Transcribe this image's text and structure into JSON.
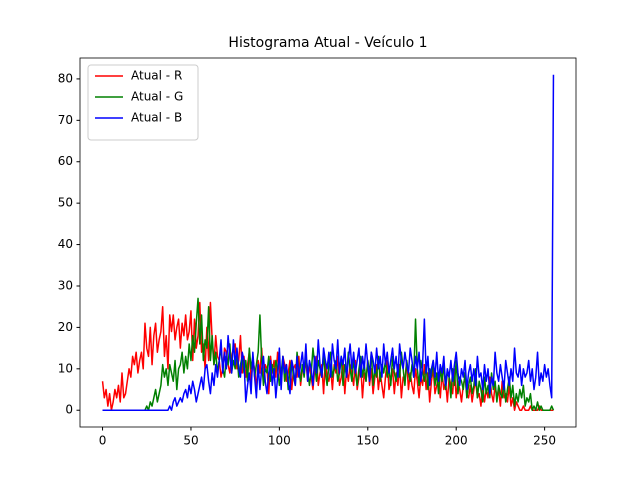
{
  "chart_data": {
    "type": "line",
    "title": "Histograma Atual - Veículo 1",
    "x": [
      0,
      1,
      2,
      3,
      4,
      5,
      6,
      7,
      8,
      9,
      10,
      11,
      12,
      13,
      14,
      15,
      16,
      17,
      18,
      19,
      20,
      21,
      22,
      23,
      24,
      25,
      26,
      27,
      28,
      29,
      30,
      31,
      32,
      33,
      34,
      35,
      36,
      37,
      38,
      39,
      40,
      41,
      42,
      43,
      44,
      45,
      46,
      47,
      48,
      49,
      50,
      51,
      52,
      53,
      54,
      55,
      56,
      57,
      58,
      59,
      60,
      61,
      62,
      63,
      64,
      65,
      66,
      67,
      68,
      69,
      70,
      71,
      72,
      73,
      74,
      75,
      76,
      77,
      78,
      79,
      80,
      81,
      82,
      83,
      84,
      85,
      86,
      87,
      88,
      89,
      90,
      91,
      92,
      93,
      94,
      95,
      96,
      97,
      98,
      99,
      100,
      101,
      102,
      103,
      104,
      105,
      106,
      107,
      108,
      109,
      110,
      111,
      112,
      113,
      114,
      115,
      116,
      117,
      118,
      119,
      120,
      121,
      122,
      123,
      124,
      125,
      126,
      127,
      128,
      129,
      130,
      131,
      132,
      133,
      134,
      135,
      136,
      137,
      138,
      139,
      140,
      141,
      142,
      143,
      144,
      145,
      146,
      147,
      148,
      149,
      150,
      151,
      152,
      153,
      154,
      155,
      156,
      157,
      158,
      159,
      160,
      161,
      162,
      163,
      164,
      165,
      166,
      167,
      168,
      169,
      170,
      171,
      172,
      173,
      174,
      175,
      176,
      177,
      178,
      179,
      180,
      181,
      182,
      183,
      184,
      185,
      186,
      187,
      188,
      189,
      190,
      191,
      192,
      193,
      194,
      195,
      196,
      197,
      198,
      199,
      200,
      201,
      202,
      203,
      204,
      205,
      206,
      207,
      208,
      209,
      210,
      211,
      212,
      213,
      214,
      215,
      216,
      217,
      218,
      219,
      220,
      221,
      222,
      223,
      224,
      225,
      226,
      227,
      228,
      229,
      230,
      231,
      232,
      233,
      234,
      235,
      236,
      237,
      238,
      239,
      240,
      241,
      242,
      243,
      244,
      245,
      246,
      247,
      248,
      249,
      250,
      251,
      252,
      253,
      254,
      255
    ],
    "series": [
      {
        "name": "Atual - R",
        "color": "#ff0000",
        "values": [
          7,
          3,
          5,
          1,
          4,
          0,
          2,
          5,
          3,
          6,
          2,
          9,
          3,
          4,
          7,
          10,
          8,
          13,
          11,
          14,
          9,
          12,
          14,
          10,
          21,
          15,
          13,
          20,
          11,
          18,
          21,
          14,
          17,
          19,
          25,
          13,
          18,
          10,
          23,
          19,
          23,
          17,
          20,
          22,
          15,
          21,
          18,
          23,
          17,
          19,
          24,
          12,
          22,
          15,
          18,
          26,
          14,
          16,
          10,
          20,
          12,
          26,
          17,
          11,
          18,
          13,
          12,
          8,
          10,
          15,
          14,
          11,
          9,
          13,
          15,
          16,
          10,
          12,
          18,
          9,
          13,
          8,
          11,
          14,
          7,
          12,
          10,
          5,
          12,
          9,
          15,
          7,
          11,
          10,
          4,
          13,
          9,
          12,
          8,
          14,
          10,
          6,
          13,
          11,
          7,
          9,
          12,
          5,
          10,
          11,
          8,
          13,
          6,
          10,
          9,
          12,
          7,
          11,
          8,
          5,
          10,
          13,
          6,
          9,
          11,
          4,
          12,
          8,
          7,
          10,
          5,
          11,
          9,
          13,
          6,
          8,
          12,
          4,
          10,
          7,
          11,
          9,
          6,
          12,
          5,
          8,
          11,
          3,
          9,
          7,
          12,
          6,
          10,
          4,
          8,
          11,
          5,
          9,
          6,
          3,
          8,
          12,
          5,
          7,
          10,
          4,
          9,
          6,
          11,
          3,
          8,
          7,
          12,
          5,
          9,
          6,
          4,
          10,
          7,
          3,
          8,
          6,
          11,
          5,
          9,
          2,
          7,
          10,
          4,
          6,
          8,
          3,
          9,
          5,
          7,
          2,
          8,
          6,
          4,
          10,
          3,
          7,
          5,
          2,
          6,
          8,
          4,
          3,
          6,
          2,
          5,
          7,
          3,
          4,
          1,
          6,
          2,
          5,
          3,
          8,
          4,
          2,
          6,
          3,
          5,
          1,
          7,
          3,
          4,
          2,
          6,
          1,
          3,
          0,
          2,
          1,
          0,
          0,
          1,
          0,
          0,
          0,
          1,
          0,
          0,
          0,
          0,
          1,
          0,
          0,
          0,
          0,
          0,
          0,
          0,
          0
        ]
      },
      {
        "name": "Atual - G",
        "color": "#008000",
        "values": [
          0,
          0,
          0,
          0,
          0,
          0,
          0,
          0,
          0,
          0,
          0,
          0,
          0,
          0,
          0,
          0,
          0,
          0,
          0,
          0,
          0,
          0,
          0,
          0,
          0,
          1,
          0,
          2,
          1,
          3,
          5,
          2,
          4,
          6,
          11,
          8,
          10,
          6,
          11,
          9,
          7,
          12,
          5,
          10,
          11,
          14,
          9,
          13,
          10,
          16,
          12,
          18,
          14,
          21,
          27,
          16,
          23,
          12,
          17,
          15,
          25,
          12,
          18,
          11,
          14,
          9,
          12,
          15,
          10,
          8,
          13,
          11,
          16,
          9,
          12,
          10,
          14,
          8,
          11,
          13,
          9,
          12,
          7,
          15,
          10,
          13,
          8,
          11,
          14,
          23,
          12,
          6,
          10,
          9,
          13,
          7,
          11,
          8,
          12,
          10,
          6,
          9,
          13,
          7,
          11,
          5,
          10,
          12,
          8,
          6,
          14,
          9,
          7,
          11,
          8,
          13,
          10,
          6,
          9,
          15,
          11,
          7,
          12,
          10,
          8,
          13,
          9,
          6,
          11,
          14,
          8,
          10,
          12,
          7,
          9,
          13,
          6,
          11,
          8,
          14,
          10,
          7,
          12,
          9,
          6,
          10,
          13,
          8,
          11,
          7,
          12,
          9,
          14,
          6,
          10,
          8,
          13,
          7,
          11,
          9,
          12,
          8,
          10,
          6,
          13,
          9,
          7,
          11,
          8,
          14,
          10,
          6,
          12,
          9,
          7,
          11,
          8,
          22,
          10,
          6,
          12,
          9,
          7,
          11,
          5,
          10,
          8,
          12,
          6,
          9,
          4,
          10,
          7,
          11,
          5,
          9,
          8,
          3,
          10,
          6,
          12,
          4,
          8,
          7,
          5,
          9,
          3,
          6,
          8,
          4,
          6,
          10,
          3,
          7,
          5,
          2,
          8,
          4,
          6,
          3,
          9,
          5,
          7,
          2,
          6,
          4,
          3,
          7,
          2,
          5,
          8,
          3,
          6,
          1,
          4,
          2,
          5,
          3,
          6,
          1,
          3,
          2,
          4,
          0,
          1,
          0,
          2,
          0,
          1,
          0,
          0,
          0,
          0,
          0,
          1,
          0
        ]
      },
      {
        "name": "Atual - B",
        "color": "#0000ff",
        "values": [
          0,
          0,
          0,
          0,
          0,
          0,
          0,
          0,
          0,
          0,
          0,
          0,
          0,
          0,
          0,
          0,
          0,
          0,
          0,
          0,
          0,
          0,
          0,
          0,
          0,
          0,
          0,
          0,
          0,
          0,
          0,
          0,
          0,
          0,
          0,
          0,
          0,
          0,
          1,
          0,
          2,
          3,
          1,
          2,
          3,
          2,
          4,
          5,
          3,
          6,
          4,
          7,
          5,
          2,
          4,
          6,
          8,
          5,
          10,
          11,
          7,
          4,
          9,
          6,
          11,
          8,
          12,
          17,
          9,
          14,
          10,
          18,
          13,
          9,
          17,
          11,
          15,
          10,
          8,
          14,
          12,
          2,
          6,
          9,
          4,
          14,
          8,
          3,
          11,
          5,
          10,
          13,
          7,
          4,
          9,
          12,
          6,
          10,
          3,
          8,
          15,
          5,
          13,
          9,
          11,
          7,
          4,
          12,
          10,
          6,
          13,
          8,
          11,
          14,
          9,
          16,
          7,
          12,
          10,
          6,
          13,
          9,
          17,
          11,
          8,
          15,
          12,
          10,
          14,
          8,
          16,
          12,
          10,
          17,
          9,
          13,
          11,
          15,
          8,
          12,
          16,
          10,
          14,
          9,
          12,
          15,
          8,
          13,
          10,
          16,
          11,
          7,
          14,
          12,
          9,
          15,
          10,
          13,
          8,
          16,
          11,
          14,
          9,
          12,
          15,
          10,
          13,
          8,
          16,
          12,
          10,
          14,
          11,
          9,
          15,
          12,
          8,
          13,
          10,
          14,
          7,
          11,
          22,
          9,
          13,
          6,
          10,
          12,
          8,
          14,
          7,
          11,
          9,
          13,
          6,
          10,
          8,
          12,
          7,
          11,
          14,
          9,
          6,
          10,
          8,
          12,
          5,
          9,
          11,
          7,
          10,
          6,
          13,
          8,
          9,
          5,
          11,
          7,
          10,
          4,
          8,
          6,
          14,
          9,
          7,
          11,
          8,
          5,
          12,
          9,
          6,
          10,
          7,
          15,
          9,
          8,
          11,
          6,
          10,
          8,
          9,
          12,
          7,
          10,
          5,
          8,
          14,
          6,
          9,
          7,
          11,
          8,
          10,
          6,
          3,
          81
        ]
      }
    ],
    "xlim": [
      -12.75,
      267.75
    ],
    "xticks": [
      0,
      50,
      100,
      150,
      200,
      250
    ],
    "ylim": [
      -4.05,
      85.05
    ],
    "yticks": [
      0,
      10,
      20,
      30,
      40,
      50,
      60,
      70,
      80
    ],
    "legend": "upper left"
  }
}
